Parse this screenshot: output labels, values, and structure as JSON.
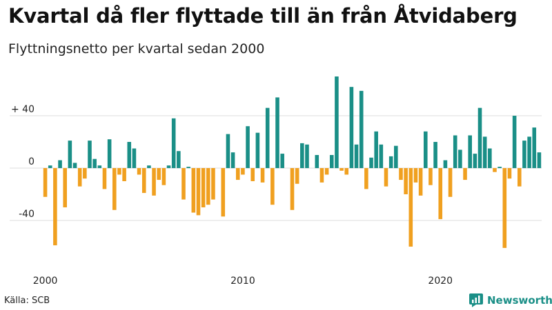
{
  "title": "Kvartal då fler flyttade till än från Åtvidaberg",
  "subtitle": "Flyttningsnetto per kvartal sedan 2000",
  "source": "Källa: SCB",
  "brand": "Newsworthy",
  "colors": {
    "positive": "#1a8f87",
    "negative": "#f0a020",
    "grid": "#dddddd",
    "axis": "#222222"
  },
  "chart_data": {
    "type": "bar",
    "title": "Kvartal då fler flyttade till än från Åtvidaberg",
    "subtitle": "Flyttningsnetto per kvartal sedan 2000",
    "x_start_year": 2000,
    "periods_per_year": 4,
    "x_tick_labels": [
      "2000",
      "2010",
      "2020"
    ],
    "y_ticks": [
      40,
      0,
      -40
    ],
    "y_tick_labels": [
      "+ 40",
      "0",
      "-40"
    ],
    "ylim": [
      -62,
      72
    ],
    "values": [
      -22,
      2,
      -59,
      6,
      -30,
      21,
      4,
      -14,
      -8,
      21,
      7,
      2,
      -16,
      22,
      -32,
      -5,
      -10,
      20,
      15,
      -5,
      -19,
      2,
      -21,
      -9,
      -13,
      2,
      38,
      13,
      -24,
      1,
      -34,
      -36,
      -30,
      -28,
      -24,
      0,
      -37,
      26,
      12,
      -9,
      -5,
      32,
      -10,
      27,
      -11,
      46,
      -28,
      54,
      11,
      0,
      -32,
      -12,
      19,
      18,
      0,
      10,
      -11,
      -5,
      10,
      70,
      -2,
      -5,
      62,
      18,
      59,
      -16,
      8,
      28,
      18,
      -14,
      9,
      17,
      -9,
      -20,
      -60,
      -11,
      -21,
      28,
      -13,
      20,
      -39,
      6,
      -22,
      25,
      14,
      -9,
      25,
      11,
      46,
      24,
      15,
      -3,
      1,
      -61,
      -8,
      40,
      -14,
      21,
      24,
      31,
      12
    ]
  }
}
